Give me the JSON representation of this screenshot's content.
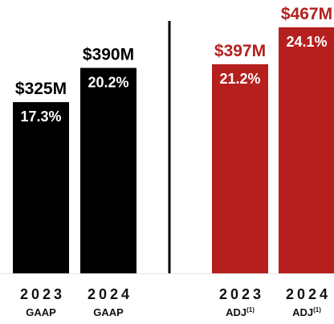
{
  "chart_data": {
    "type": "bar",
    "categories": [
      "2023 GAAP",
      "2024 GAAP",
      "2023 ADJ(1)",
      "2024 ADJ(1)"
    ],
    "values": [
      325,
      390,
      397,
      467
    ],
    "unit": "$M",
    "value_labels": [
      "$325M",
      "$390M",
      "$397M",
      "$467M"
    ],
    "margin_labels": [
      "17.3%",
      "20.2%",
      "21.2%",
      "24.1%"
    ],
    "margins": [
      17.3,
      20.2,
      21.2,
      24.1
    ],
    "years": [
      "2023",
      "2024",
      "2023",
      "2024"
    ],
    "types": [
      "GAAP",
      "GAAP",
      "ADJ",
      "ADJ"
    ],
    "type_superscripts": [
      "",
      "",
      "(1)",
      "(1)"
    ],
    "groups": [
      "GAAP",
      "GAAP",
      "ADJ",
      "ADJ"
    ],
    "colors": {
      "GAAP": "#000000",
      "ADJ": "#b5201e"
    },
    "value_label_colors": {
      "GAAP": "#000000",
      "ADJ": "#b5201e"
    },
    "separator": true,
    "grid": false,
    "legend": "none"
  }
}
